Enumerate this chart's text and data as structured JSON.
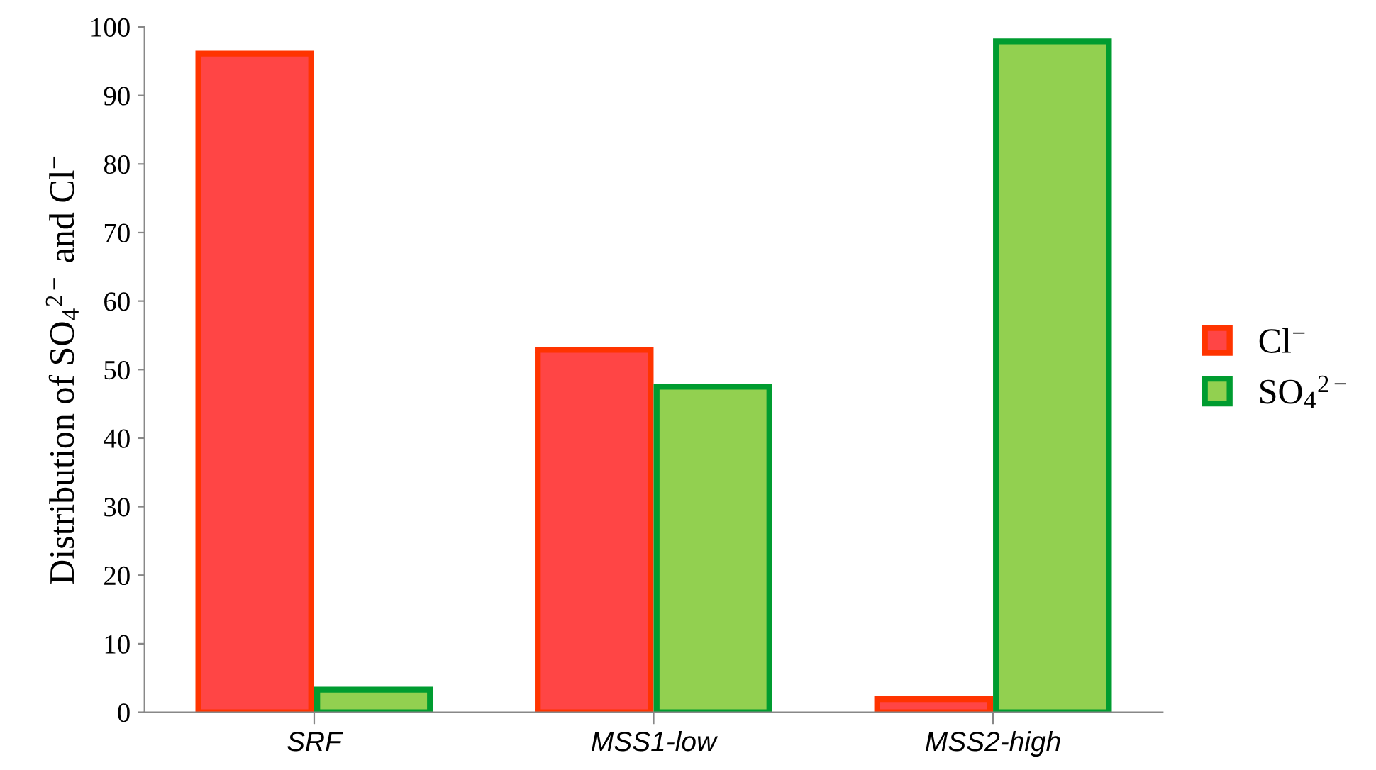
{
  "chart_data": {
    "type": "bar",
    "ylabel": "Distribution of SO$_{4}$$^{2−}$ and Cl$^{−}$",
    "categories": [
      "SRF",
      "MSS1-low",
      "MSS2-high"
    ],
    "series": [
      {
        "name": "Cl$^{−}$",
        "color": "#ff4545",
        "values": [
          96.1,
          52.9,
          1.9
        ]
      },
      {
        "name": "SO$_{4}$$^{2−}$",
        "color": "#92d050",
        "values": [
          3.3,
          47.5,
          97.9
        ]
      }
    ],
    "ylim": [
      0,
      100
    ],
    "yticks": [
      0,
      10,
      20,
      30,
      40,
      50,
      60,
      70,
      80,
      90,
      100
    ],
    "grid": false,
    "legend": "right"
  }
}
